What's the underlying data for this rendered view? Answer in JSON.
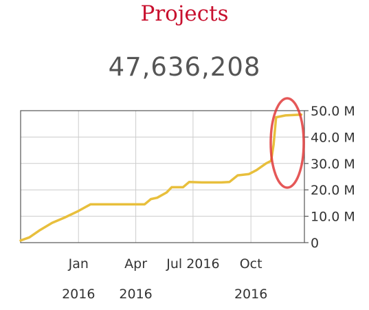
{
  "header": {
    "title": "Projects",
    "total": "47,636,208"
  },
  "colors": {
    "title": "#c8102e",
    "line": "#e8bf3c",
    "highlight": "#e03b3b",
    "grid": "#cccccc"
  },
  "chart_data": {
    "type": "line",
    "title": "Projects",
    "xlabel": "",
    "ylabel": "",
    "x_range": [
      "2015-10-01",
      "2016-12-25"
    ],
    "ylim": [
      0,
      50000000
    ],
    "grid": true,
    "y_axis_side": "right",
    "x_ticks": [
      {
        "date": "2016-01-01",
        "label": "Jan",
        "label2": "2016"
      },
      {
        "date": "2016-04-01",
        "label": "Apr",
        "label2": "2016"
      },
      {
        "date": "2016-07-01",
        "label": "Jul 2016",
        "label2": ""
      },
      {
        "date": "2016-10-01",
        "label": "Oct",
        "label2": "2016"
      }
    ],
    "y_ticks": [
      {
        "value": 0,
        "label": "0"
      },
      {
        "value": 10000000,
        "label": "10.0 M"
      },
      {
        "value": 20000000,
        "label": "20.0 M"
      },
      {
        "value": 30000000,
        "label": "30.0 M"
      },
      {
        "value": 40000000,
        "label": "40.0 M"
      },
      {
        "value": 50000000,
        "label": "50.0 M"
      }
    ],
    "annotation": "highlight ellipse around final jump",
    "series": [
      {
        "points": [
          [
            "2015-10-01",
            800000
          ],
          [
            "2015-10-15",
            2000000
          ],
          [
            "2015-11-01",
            4800000
          ],
          [
            "2015-11-20",
            7500000
          ],
          [
            "2015-12-10",
            9500000
          ],
          [
            "2016-01-01",
            12000000
          ],
          [
            "2016-01-20",
            14500000
          ],
          [
            "2016-02-15",
            14500000
          ],
          [
            "2016-03-15",
            14500000
          ],
          [
            "2016-04-15",
            14500000
          ],
          [
            "2016-04-25",
            16500000
          ],
          [
            "2016-05-05",
            17000000
          ],
          [
            "2016-05-20",
            19000000
          ],
          [
            "2016-05-28",
            21000000
          ],
          [
            "2016-06-15",
            21000000
          ],
          [
            "2016-06-25",
            23000000
          ],
          [
            "2016-07-15",
            22800000
          ],
          [
            "2016-08-15",
            22800000
          ],
          [
            "2016-08-28",
            23000000
          ],
          [
            "2016-09-10",
            25500000
          ],
          [
            "2016-09-28",
            26000000
          ],
          [
            "2016-10-10",
            27500000
          ],
          [
            "2016-10-25",
            30000000
          ],
          [
            "2016-11-02",
            31000000
          ],
          [
            "2016-11-06",
            37000000
          ],
          [
            "2016-11-10",
            47500000
          ],
          [
            "2016-11-25",
            48200000
          ],
          [
            "2016-12-20",
            48500000
          ]
        ]
      }
    ]
  }
}
